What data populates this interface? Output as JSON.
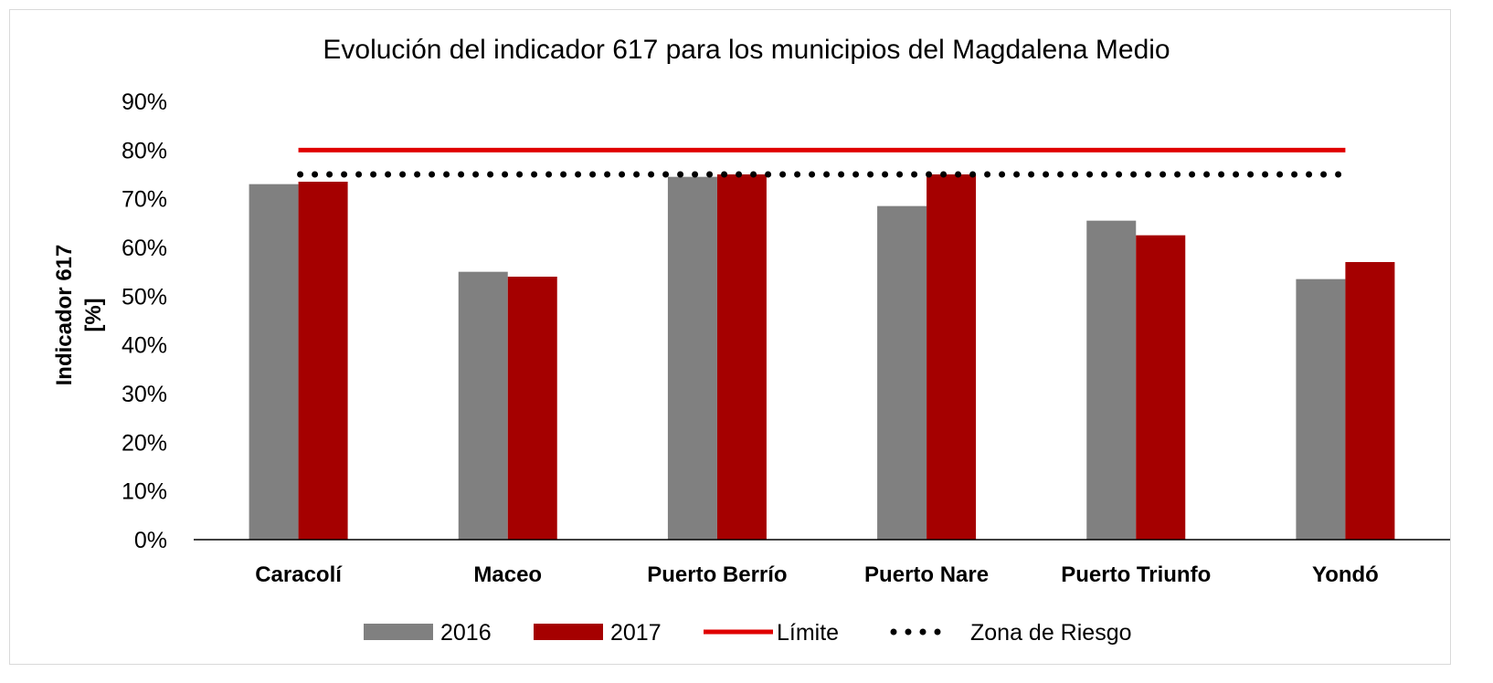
{
  "chart_data": {
    "type": "bar",
    "title": "Evolución del indicador 617 para los municipios del Magdalena Medio",
    "ylabel_lines": [
      "Indicador 617",
      "[%]"
    ],
    "xlabel": "",
    "categories": [
      "Caracolí",
      "Maceo",
      "Puerto Berrío",
      "Puerto Nare",
      "Puerto Triunfo",
      "Yondó"
    ],
    "series": [
      {
        "name": "2016",
        "values": [
          0.73,
          0.55,
          0.745,
          0.685,
          0.655,
          0.535
        ],
        "color": "#808080"
      },
      {
        "name": "2017",
        "values": [
          0.735,
          0.54,
          0.75,
          0.75,
          0.625,
          0.57
        ],
        "color": "#a50000"
      }
    ],
    "reference_lines": [
      {
        "name": "Límite",
        "value": 0.8,
        "color": "#e00000",
        "style": "solid"
      },
      {
        "name": "Zona de Riesgo",
        "value": 0.75,
        "color": "#000000",
        "style": "dotted"
      }
    ],
    "ylim": [
      0,
      0.9
    ],
    "yticks": [
      "0%",
      "10%",
      "20%",
      "30%",
      "40%",
      "50%",
      "60%",
      "70%",
      "80%",
      "90%"
    ],
    "grid": false,
    "legend_position": "bottom"
  }
}
